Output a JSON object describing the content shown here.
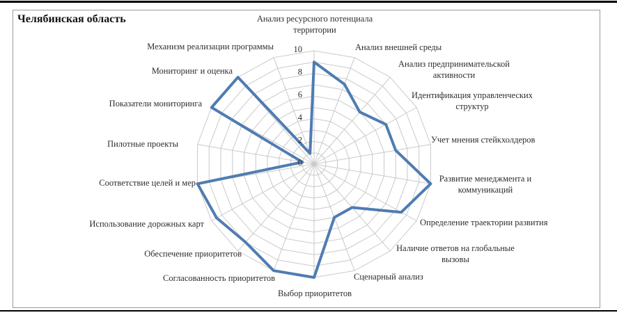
{
  "page": {
    "region_title": "Челябинская область"
  },
  "chart_data": {
    "type": "radar",
    "title": "Челябинская область",
    "categories": [
      "Анализ ресурсного потенциала\nтерритории",
      "Анализ внешней среды",
      "Анализ предпринимательской\nактивности",
      "Идентификация управленческих\nструктур",
      "Учет мнения стейкхолдеров",
      "Развитие менеджмента и\nкоммуникаций",
      "Определение траектории развития",
      "Наличие ответов на глобальные\nвызовы",
      "Сценарный анализ",
      "Выбор приоритетов",
      "Согласованность приоритетов",
      "Обеспечение приоритетов",
      "Использование дорожных карт",
      "Соответствие целей и мер",
      "Пилотные проекты",
      "Показатели мониторинга",
      "Мониторинг и оценка",
      "Механизм реализации программы"
    ],
    "series": [
      {
        "name": "Челябинская область",
        "values": [
          9,
          7.5,
          6,
          7,
          7,
          10,
          8.5,
          5,
          5,
          10,
          10,
          9,
          9.5,
          10,
          1,
          10,
          10,
          1
        ]
      }
    ],
    "axis": {
      "min": 0,
      "max": 10,
      "tick_interval": 2,
      "grid_interval": 1,
      "tick_labels": [
        "0",
        "2",
        "4",
        "6",
        "8",
        "10"
      ]
    },
    "grid": true,
    "legend_position": "none",
    "colors": {
      "line": "#4f7cb1",
      "grid": "#c9c9c9",
      "label": "#2e2e2e",
      "tick": "#2e2e2e",
      "frame_border": "#9a9a9a",
      "rule": "#000000"
    }
  }
}
